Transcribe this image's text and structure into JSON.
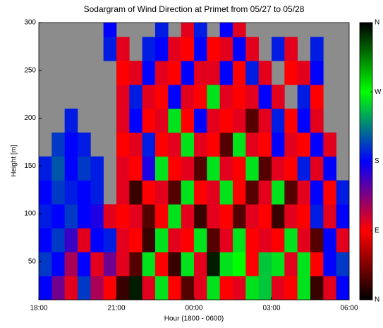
{
  "chart_data": {
    "type": "heatmap",
    "title": "Sodargram of Wind Direction at Primet from 05/27 to 05/28",
    "xlabel": "Hour (1800 - 0600)",
    "ylabel": "Height [m]",
    "xlim": [
      0,
      12
    ],
    "ylim": [
      10,
      300
    ],
    "xticks": [
      {
        "value": 0,
        "label": "18:00"
      },
      {
        "value": 3,
        "label": "21:00"
      },
      {
        "value": 6,
        "label": "00:00"
      },
      {
        "value": 9,
        "label": "03:00"
      },
      {
        "value": 12,
        "label": "06:00"
      }
    ],
    "yticks": [
      50,
      100,
      150,
      200,
      250,
      300
    ],
    "xbins": [
      0,
      0.5,
      1,
      1.5,
      2,
      2.5,
      3,
      3.5,
      4,
      4.5,
      5,
      5.5,
      6,
      6.5,
      7,
      7.5,
      8,
      8.5,
      9,
      9.5,
      10,
      10.5,
      11,
      11.5,
      12
    ],
    "ybins": [
      10,
      35,
      60,
      85,
      110,
      135,
      160,
      185,
      210,
      235,
      260,
      285,
      300
    ],
    "missing_color": "#8c8c8c",
    "colormap": [
      "#000000",
      "#ff0000",
      "#0000ff",
      "#00ff00",
      "#000000"
    ],
    "clim": [
      0,
      360
    ],
    "cticks": [
      {
        "value": 0,
        "label": "N"
      },
      {
        "value": 90,
        "label": "E"
      },
      {
        "value": 180,
        "label": "S"
      },
      {
        "value": 270,
        "label": "W"
      },
      {
        "value": 360,
        "label": "N"
      }
    ],
    "z": [
      [
        180,
        140,
        100,
        200,
        120,
        90,
        20,
        350,
        100,
        260,
        90,
        30,
        100,
        260,
        90,
        100,
        260,
        250,
        100,
        90,
        260,
        20,
        100,
        180
      ],
      [
        200,
        180,
        120,
        180,
        100,
        140,
        100,
        30,
        260,
        90,
        20,
        260,
        100,
        350,
        260,
        270,
        90,
        250,
        260,
        100,
        260,
        90,
        180,
        200
      ],
      [
        180,
        200,
        160,
        100,
        180,
        190,
        100,
        90,
        20,
        260,
        100,
        90,
        260,
        30,
        100,
        260,
        90,
        100,
        90,
        260,
        100,
        30,
        180,
        100
      ],
      [
        190,
        180,
        200,
        180,
        170,
        100,
        90,
        100,
        30,
        90,
        260,
        100,
        20,
        100,
        90,
        30,
        100,
        90,
        20,
        100,
        90,
        190,
        100,
        180
      ],
      [
        180,
        200,
        190,
        180,
        190,
        null,
        100,
        20,
        90,
        100,
        30,
        260,
        90,
        100,
        260,
        90,
        30,
        100,
        260,
        30,
        100,
        180,
        90,
        190
      ],
      [
        190,
        210,
        180,
        200,
        190,
        null,
        100,
        90,
        170,
        260,
        90,
        100,
        30,
        260,
        100,
        90,
        260,
        30,
        100,
        90,
        190,
        100,
        180,
        null
      ],
      [
        null,
        200,
        180,
        190,
        null,
        null,
        90,
        100,
        190,
        90,
        100,
        260,
        100,
        90,
        30,
        260,
        100,
        90,
        180,
        100,
        90,
        180,
        100,
        null
      ],
      [
        null,
        null,
        190,
        null,
        null,
        null,
        100,
        180,
        90,
        100,
        260,
        90,
        180,
        100,
        90,
        100,
        30,
        100,
        190,
        90,
        180,
        100,
        null,
        null
      ],
      [
        null,
        null,
        null,
        null,
        null,
        null,
        100,
        190,
        100,
        90,
        180,
        100,
        90,
        260,
        100,
        90,
        100,
        180,
        100,
        null,
        190,
        90,
        null,
        null
      ],
      [
        null,
        null,
        null,
        null,
        null,
        null,
        90,
        100,
        180,
        100,
        90,
        180,
        100,
        100,
        180,
        90,
        190,
        100,
        null,
        90,
        100,
        180,
        null,
        null
      ],
      [
        null,
        null,
        null,
        null,
        null,
        190,
        100,
        null,
        190,
        180,
        100,
        90,
        180,
        90,
        100,
        180,
        100,
        null,
        190,
        100,
        null,
        190,
        null,
        null
      ],
      [
        null,
        null,
        null,
        null,
        null,
        180,
        null,
        null,
        null,
        190,
        null,
        100,
        190,
        null,
        180,
        100,
        null,
        null,
        null,
        null,
        null,
        null,
        null,
        null
      ]
    ]
  }
}
